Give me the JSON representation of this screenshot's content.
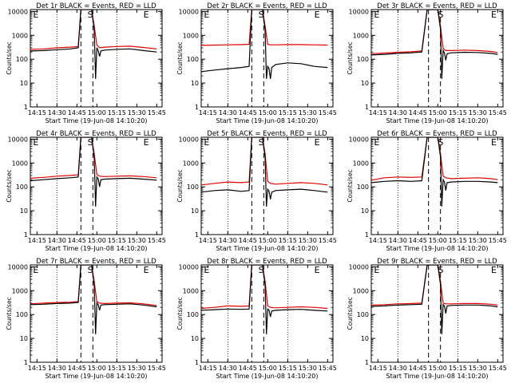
{
  "chart_data": [
    {
      "type": "line",
      "title": "Det 1r BLACK = Events, RED = LLD",
      "xlabel": "Start Time (19-Jun-08 14:10:20)",
      "ylabel": "Counts/sec",
      "x_ticks": [
        "14:15",
        "14:30",
        "14:45",
        "15:00",
        "15:15",
        "15:30",
        "15:45"
      ],
      "y_ticks": [
        "1",
        "10",
        "100",
        "1000",
        "10000"
      ],
      "yscale": "log",
      "ylim": [
        1,
        12000
      ],
      "markers": [
        "E",
        "S",
        "E"
      ],
      "series": [
        {
          "name": "BLACK = Events",
          "color": "#000000",
          "x": [
            "14:10",
            "14:20",
            "14:30",
            "14:40",
            "14:46",
            "14:48",
            "14:52",
            "14:56",
            "14:58",
            "14:59",
            "15:00",
            "15:01",
            "15:02",
            "15:03",
            "15:06",
            "15:15",
            "15:25",
            "15:35",
            "15:45"
          ],
          "y": [
            220,
            230,
            250,
            270,
            300,
            12000,
            12000,
            12000,
            1800,
            15,
            300,
            230,
            130,
            220,
            240,
            260,
            270,
            230,
            200
          ]
        },
        {
          "name": "RED = LLD",
          "color": "#e00000",
          "x": [
            "14:10",
            "14:20",
            "14:30",
            "14:40",
            "14:46",
            "14:48",
            "14:52",
            "14:56",
            "14:58",
            "15:00",
            "15:02",
            "15:06",
            "15:15",
            "15:25",
            "15:35",
            "15:45"
          ],
          "y": [
            260,
            270,
            300,
            320,
            340,
            12000,
            12000,
            12000,
            2500,
            400,
            300,
            320,
            340,
            350,
            310,
            270
          ]
        }
      ]
    },
    {
      "type": "line",
      "title": "Det 2r BLACK = Events, RED = LLD",
      "xlabel": "Start Time (19-Jun-08 14:10:20)",
      "ylabel": "Counts/sec",
      "x_ticks": [
        "14:15",
        "14:30",
        "14:45",
        "15:00",
        "15:15",
        "15:30",
        "15:45"
      ],
      "y_ticks": [
        "1",
        "10",
        "100",
        "1000",
        "10000"
      ],
      "yscale": "log",
      "ylim": [
        1,
        12000
      ],
      "markers": [
        "E",
        "S",
        "E"
      ],
      "series": [
        {
          "name": "BLACK = Events",
          "color": "#000000",
          "x": [
            "14:10",
            "14:20",
            "14:30",
            "14:40",
            "14:46",
            "14:48",
            "14:52",
            "14:56",
            "14:58",
            "14:59",
            "15:00",
            "15:01",
            "15:02",
            "15:03",
            "15:06",
            "15:15",
            "15:25",
            "15:35",
            "15:45"
          ],
          "y": [
            30,
            35,
            40,
            45,
            50,
            12000,
            12000,
            12000,
            1800,
            15,
            50,
            40,
            15,
            45,
            60,
            70,
            65,
            50,
            45
          ]
        },
        {
          "name": "RED = LLD",
          "color": "#e00000",
          "x": [
            "14:10",
            "14:20",
            "14:30",
            "14:40",
            "14:46",
            "14:48",
            "14:52",
            "14:56",
            "14:58",
            "15:00",
            "15:02",
            "15:06",
            "15:15",
            "15:25",
            "15:35",
            "15:45"
          ],
          "y": [
            380,
            390,
            400,
            410,
            420,
            12000,
            12000,
            12000,
            2500,
            420,
            400,
            400,
            410,
            410,
            400,
            390
          ]
        }
      ]
    },
    {
      "type": "line",
      "title": "Det 3r BLACK = Events, RED = LLD",
      "xlabel": "Start Time (19-Jun-08 14:10:20)",
      "ylabel": "Counts/sec",
      "x_ticks": [
        "14:15",
        "14:30",
        "14:45",
        "15:00",
        "15:15",
        "15:30",
        "15:45"
      ],
      "y_ticks": [
        "1",
        "10",
        "100",
        "1000",
        "10000"
      ],
      "yscale": "log",
      "ylim": [
        1,
        12000
      ],
      "markers": [
        "E",
        "S",
        "E"
      ],
      "series": [
        {
          "name": "BLACK = Events",
          "color": "#000000",
          "x": [
            "14:10",
            "14:20",
            "14:30",
            "14:40",
            "14:48",
            "14:52",
            "14:56",
            "15:00",
            "15:02",
            "15:03",
            "15:04",
            "15:05",
            "15:06",
            "15:07",
            "15:10",
            "15:20",
            "15:30",
            "15:40",
            "15:45"
          ],
          "y": [
            150,
            160,
            175,
            185,
            200,
            12000,
            12000,
            12000,
            1800,
            15,
            230,
            180,
            90,
            170,
            185,
            195,
            190,
            175,
            160
          ]
        },
        {
          "name": "RED = LLD",
          "color": "#e00000",
          "x": [
            "14:10",
            "14:20",
            "14:30",
            "14:40",
            "14:48",
            "14:52",
            "14:56",
            "15:00",
            "15:02",
            "15:04",
            "15:06",
            "15:10",
            "15:20",
            "15:30",
            "15:40",
            "15:45"
          ],
          "y": [
            170,
            180,
            195,
            205,
            220,
            12000,
            12000,
            12000,
            2500,
            280,
            230,
            230,
            240,
            230,
            210,
            190
          ]
        }
      ]
    },
    {
      "type": "line",
      "title": "Det 4r BLACK = Events, RED = LLD",
      "xlabel": "Start Time (19-Jun-08 14:10:20)",
      "ylabel": "Counts/sec",
      "x_ticks": [
        "14:15",
        "14:30",
        "14:45",
        "15:00",
        "15:15",
        "15:30",
        "15:45"
      ],
      "y_ticks": [
        "1",
        "10",
        "100",
        "1000",
        "10000"
      ],
      "yscale": "log",
      "ylim": [
        1,
        12000
      ],
      "markers": [
        "E",
        "S",
        "E"
      ],
      "series": [
        {
          "name": "BLACK = Events",
          "color": "#000000",
          "x": [
            "14:10",
            "14:20",
            "14:30",
            "14:40",
            "14:46",
            "14:48",
            "14:52",
            "14:56",
            "14:58",
            "14:59",
            "15:00",
            "15:01",
            "15:02",
            "15:03",
            "15:06",
            "15:15",
            "15:25",
            "15:35",
            "15:45"
          ],
          "y": [
            180,
            200,
            220,
            240,
            260,
            12000,
            12000,
            12000,
            1800,
            15,
            260,
            220,
            100,
            200,
            210,
            220,
            230,
            210,
            190
          ]
        },
        {
          "name": "RED = LLD",
          "color": "#e00000",
          "x": [
            "14:10",
            "14:20",
            "14:30",
            "14:40",
            "14:46",
            "14:48",
            "14:52",
            "14:56",
            "14:58",
            "15:00",
            "15:02",
            "15:06",
            "15:15",
            "15:25",
            "15:35",
            "15:45"
          ],
          "y": [
            230,
            250,
            280,
            300,
            320,
            12000,
            12000,
            12000,
            2500,
            330,
            280,
            270,
            280,
            290,
            270,
            240
          ]
        }
      ]
    },
    {
      "type": "line",
      "title": "Det 5r BLACK = Events, RED = LLD",
      "xlabel": "Start Time (19-Jun-08 14:10:20)",
      "ylabel": "Counts/sec",
      "x_ticks": [
        "14:15",
        "14:30",
        "14:45",
        "15:00",
        "15:15",
        "15:30",
        "15:45"
      ],
      "y_ticks": [
        "1",
        "10",
        "100",
        "1000",
        "10000"
      ],
      "yscale": "log",
      "ylim": [
        1,
        12000
      ],
      "markers": [
        "E",
        "S",
        "E"
      ],
      "series": [
        {
          "name": "BLACK = Events",
          "color": "#000000",
          "x": [
            "14:10",
            "14:20",
            "14:30",
            "14:40",
            "14:46",
            "14:48",
            "14:52",
            "14:56",
            "14:58",
            "14:59",
            "15:00",
            "15:01",
            "15:02",
            "15:03",
            "15:06",
            "15:15",
            "15:25",
            "15:35",
            "15:45"
          ],
          "y": [
            60,
            70,
            75,
            65,
            70,
            12000,
            12000,
            12000,
            1800,
            15,
            80,
            65,
            30,
            60,
            70,
            75,
            80,
            70,
            60
          ]
        },
        {
          "name": "RED = LLD",
          "color": "#e00000",
          "x": [
            "14:10",
            "14:20",
            "14:30",
            "14:40",
            "14:46",
            "14:48",
            "14:52",
            "14:56",
            "14:58",
            "15:00",
            "15:02",
            "15:06",
            "15:15",
            "15:25",
            "15:35",
            "15:45"
          ],
          "y": [
            120,
            140,
            160,
            150,
            160,
            12000,
            12000,
            12000,
            2500,
            170,
            140,
            130,
            140,
            150,
            140,
            120
          ]
        }
      ]
    },
    {
      "type": "line",
      "title": "Det 6r BLACK = Events, RED = LLD",
      "xlabel": "Start Time (19-Jun-08 14:10:20)",
      "ylabel": "Counts/sec",
      "x_ticks": [
        "14:15",
        "14:30",
        "14:45",
        "15:00",
        "15:15",
        "15:30",
        "15:45"
      ],
      "y_ticks": [
        "1",
        "10",
        "100",
        "1000",
        "10000"
      ],
      "yscale": "log",
      "ylim": [
        1,
        12000
      ],
      "markers": [
        "E",
        "S",
        "E"
      ],
      "series": [
        {
          "name": "BLACK = Events",
          "color": "#000000",
          "x": [
            "14:10",
            "14:20",
            "14:30",
            "14:40",
            "14:48",
            "14:52",
            "14:56",
            "15:00",
            "15:02",
            "15:03",
            "15:04",
            "15:05",
            "15:06",
            "15:07",
            "15:10",
            "15:20",
            "15:30",
            "15:40",
            "15:45"
          ],
          "y": [
            150,
            170,
            180,
            170,
            180,
            12000,
            12000,
            12000,
            1800,
            15,
            200,
            160,
            70,
            150,
            160,
            170,
            170,
            160,
            150
          ]
        },
        {
          "name": "RED = LLD",
          "color": "#e00000",
          "x": [
            "14:10",
            "14:20",
            "14:30",
            "14:40",
            "14:48",
            "14:52",
            "14:56",
            "15:00",
            "15:02",
            "15:04",
            "15:06",
            "15:10",
            "15:20",
            "15:30",
            "15:40",
            "15:45"
          ],
          "y": [
            190,
            240,
            260,
            250,
            260,
            12000,
            12000,
            12000,
            2500,
            280,
            240,
            220,
            230,
            240,
            220,
            200
          ]
        }
      ]
    },
    {
      "type": "line",
      "title": "Det 7r BLACK = Events, RED = LLD",
      "xlabel": "Start Time (19-Jun-08 14:10:20)",
      "ylabel": "Counts/sec",
      "x_ticks": [
        "14:15",
        "14:30",
        "14:45",
        "15:00",
        "15:15",
        "15:30",
        "15:45"
      ],
      "y_ticks": [
        "1",
        "10",
        "100",
        "1000",
        "10000"
      ],
      "yscale": "log",
      "ylim": [
        1,
        12000
      ],
      "markers": [
        "E",
        "S",
        "E"
      ],
      "series": [
        {
          "name": "BLACK = Events",
          "color": "#000000",
          "x": [
            "14:10",
            "14:20",
            "14:30",
            "14:40",
            "14:46",
            "14:48",
            "14:52",
            "14:56",
            "14:58",
            "14:59",
            "15:00",
            "15:01",
            "15:02",
            "15:03",
            "15:06",
            "15:15",
            "15:25",
            "15:35",
            "15:45"
          ],
          "y": [
            260,
            270,
            290,
            300,
            320,
            12000,
            12000,
            12000,
            1800,
            15,
            300,
            260,
            150,
            250,
            260,
            270,
            280,
            250,
            210
          ]
        },
        {
          "name": "RED = LLD",
          "color": "#e00000",
          "x": [
            "14:10",
            "14:20",
            "14:30",
            "14:40",
            "14:46",
            "14:48",
            "14:52",
            "14:56",
            "14:58",
            "15:00",
            "15:02",
            "15:06",
            "15:15",
            "15:25",
            "15:35",
            "15:45"
          ],
          "y": [
            280,
            300,
            320,
            330,
            350,
            12000,
            12000,
            12000,
            2500,
            340,
            300,
            290,
            300,
            310,
            280,
            240
          ]
        }
      ]
    },
    {
      "type": "line",
      "title": "Det 8r BLACK = Events, RED = LLD",
      "xlabel": "Start Time (19-Jun-08 14:10:20)",
      "ylabel": "Counts/sec",
      "x_ticks": [
        "14:15",
        "14:30",
        "14:45",
        "15:00",
        "15:15",
        "15:30",
        "15:45"
      ],
      "y_ticks": [
        "1",
        "10",
        "100",
        "1000",
        "10000"
      ],
      "yscale": "log",
      "ylim": [
        1,
        12000
      ],
      "markers": [
        "E",
        "S",
        "E"
      ],
      "series": [
        {
          "name": "BLACK = Events",
          "color": "#000000",
          "x": [
            "14:10",
            "14:20",
            "14:30",
            "14:40",
            "14:46",
            "14:48",
            "14:52",
            "14:56",
            "14:58",
            "14:59",
            "15:00",
            "15:01",
            "15:02",
            "15:03",
            "15:06",
            "15:15",
            "15:25",
            "15:35",
            "15:45"
          ],
          "y": [
            150,
            160,
            170,
            165,
            170,
            12000,
            12000,
            12000,
            1800,
            15,
            170,
            150,
            80,
            140,
            150,
            160,
            165,
            150,
            140
          ]
        },
        {
          "name": "RED = LLD",
          "color": "#e00000",
          "x": [
            "14:10",
            "14:20",
            "14:30",
            "14:40",
            "14:46",
            "14:48",
            "14:52",
            "14:56",
            "14:58",
            "15:00",
            "15:02",
            "15:06",
            "15:15",
            "15:25",
            "15:35",
            "15:45"
          ],
          "y": [
            180,
            200,
            230,
            220,
            230,
            12000,
            12000,
            12000,
            2500,
            230,
            200,
            190,
            200,
            210,
            200,
            180
          ]
        }
      ]
    },
    {
      "type": "line",
      "title": "Det 9r BLACK = Events, RED = LLD",
      "xlabel": "Start Time (19-Jun-08 14:10:20)",
      "ylabel": "Counts/sec",
      "x_ticks": [
        "14:15",
        "14:30",
        "14:45",
        "15:00",
        "15:15",
        "15:30",
        "15:45"
      ],
      "y_ticks": [
        "1",
        "10",
        "100",
        "1000",
        "10000"
      ],
      "yscale": "log",
      "ylim": [
        1,
        12000
      ],
      "markers": [
        "E",
        "S",
        "E"
      ],
      "series": [
        {
          "name": "BLACK = Events",
          "color": "#000000",
          "x": [
            "14:10",
            "14:20",
            "14:30",
            "14:40",
            "14:48",
            "14:52",
            "14:56",
            "15:00",
            "15:02",
            "15:03",
            "15:04",
            "15:05",
            "15:06",
            "15:07",
            "15:10",
            "15:20",
            "15:30",
            "15:40",
            "15:45"
          ],
          "y": [
            220,
            230,
            250,
            260,
            270,
            12000,
            12000,
            12000,
            1800,
            15,
            260,
            230,
            110,
            230,
            240,
            250,
            250,
            230,
            210
          ]
        },
        {
          "name": "RED = LLD",
          "color": "#e00000",
          "x": [
            "14:10",
            "14:20",
            "14:30",
            "14:40",
            "14:48",
            "14:52",
            "14:56",
            "15:00",
            "15:02",
            "15:04",
            "15:06",
            "15:10",
            "15:20",
            "15:30",
            "15:40",
            "15:45"
          ],
          "y": [
            250,
            260,
            280,
            290,
            300,
            12000,
            12000,
            12000,
            2500,
            300,
            280,
            280,
            290,
            290,
            270,
            250
          ]
        }
      ]
    }
  ]
}
